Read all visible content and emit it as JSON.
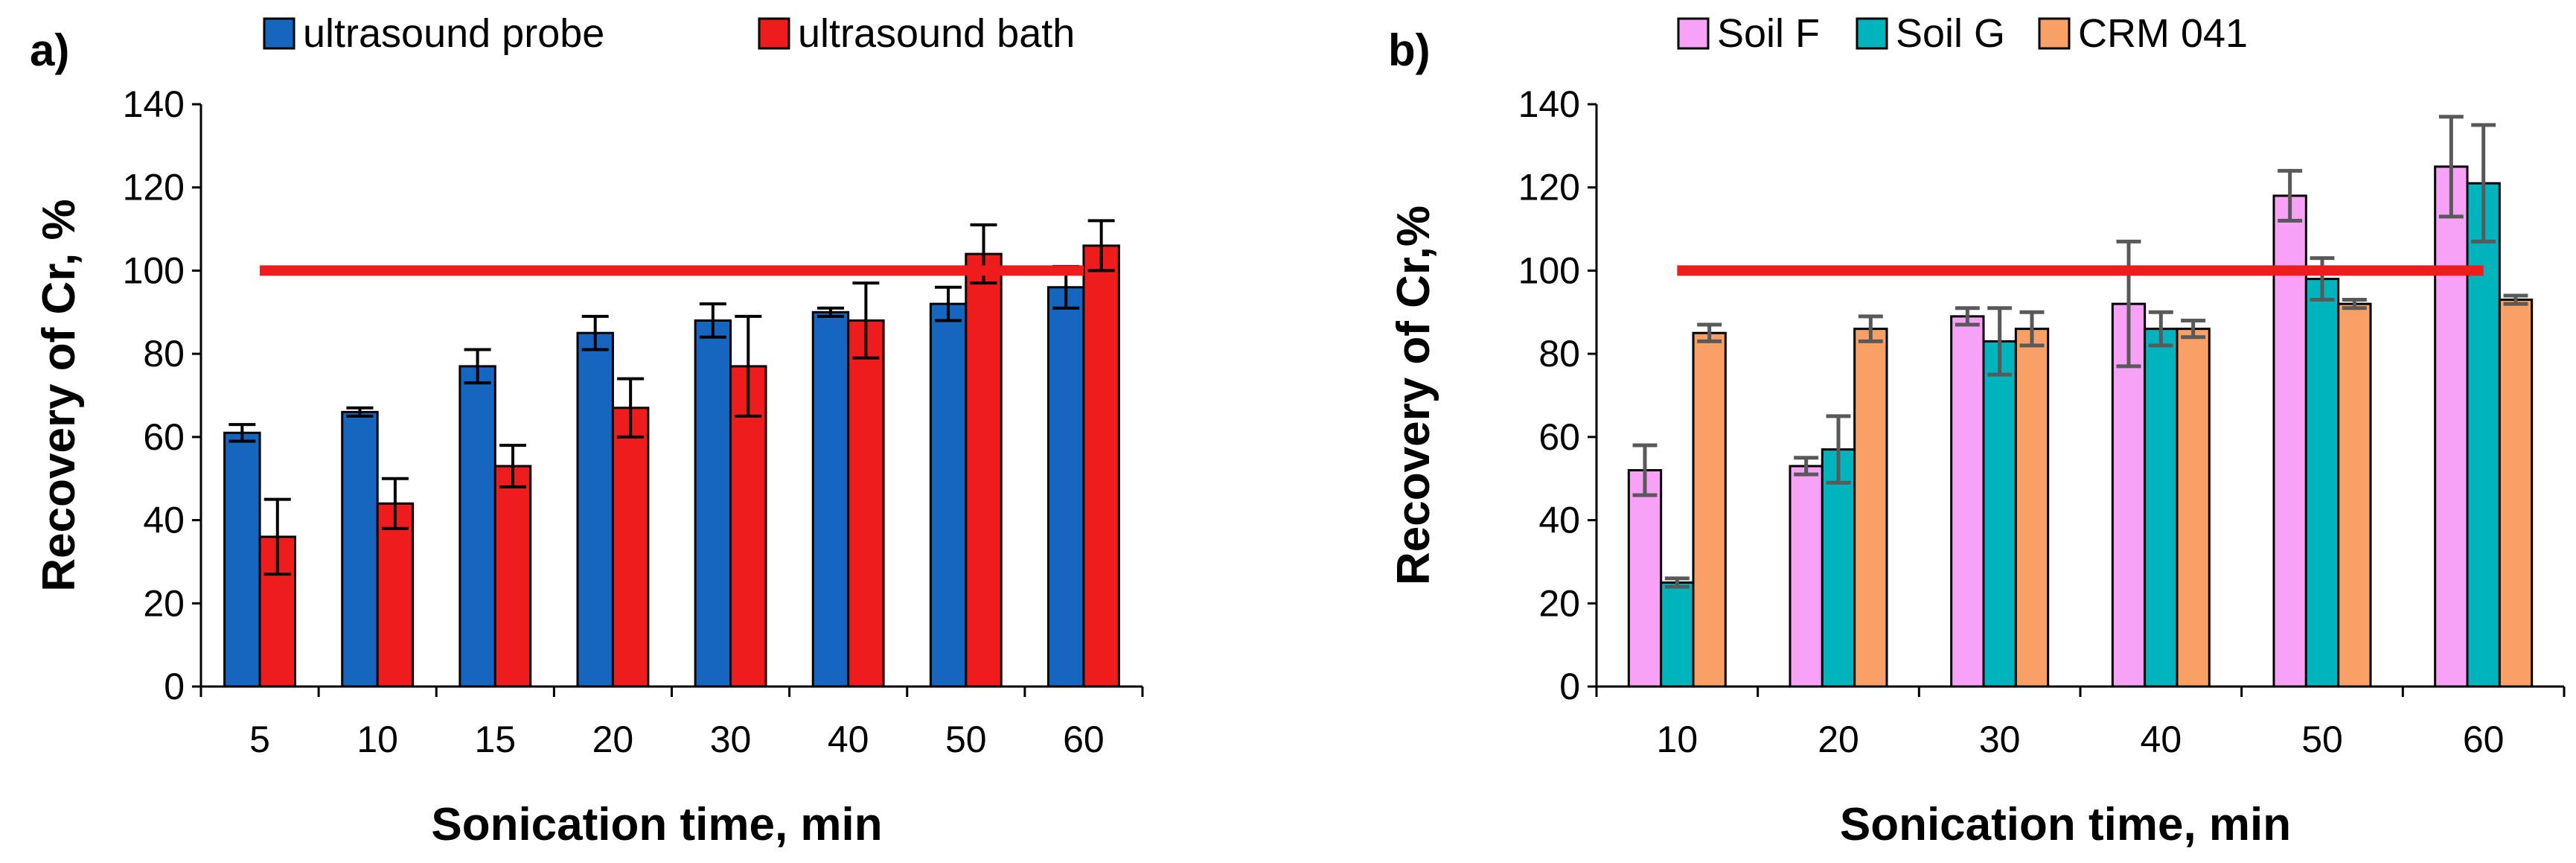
{
  "chart_data": [
    {
      "type": "bar",
      "panel_label": "a)",
      "categories": [
        "5",
        "10",
        "15",
        "20",
        "30",
        "40",
        "50",
        "60"
      ],
      "series": [
        {
          "name": "ultrasound probe",
          "color": "#1666C0",
          "values": [
            61,
            66,
            77,
            85,
            88,
            90,
            92,
            96
          ],
          "errors": [
            2,
            1,
            4,
            4,
            4,
            1,
            4,
            5
          ]
        },
        {
          "name": "ultrasound bath",
          "color": "#EE1C1C",
          "values": [
            36,
            44,
            53,
            67,
            77,
            88,
            104,
            106
          ],
          "errors": [
            9,
            6,
            5,
            7,
            12,
            9,
            7,
            6
          ]
        }
      ],
      "reference_line": {
        "value": 100,
        "color": "#EE1C1C"
      },
      "xlabel": "Sonication time, min",
      "ylabel": "Recovery of Cr, %",
      "ylim": [
        0,
        140
      ],
      "yticks": [
        "0",
        "20",
        "40",
        "60",
        "80",
        "100",
        "120",
        "140"
      ],
      "legend_position": "top"
    },
    {
      "type": "bar",
      "panel_label": "b)",
      "categories": [
        "10",
        "20",
        "30",
        "40",
        "50",
        "60"
      ],
      "series": [
        {
          "name": "Soil F",
          "color": "#F7A2F7",
          "values": [
            52,
            53,
            89,
            92,
            118,
            125
          ],
          "errors": [
            6,
            2,
            2,
            15,
            6,
            12
          ]
        },
        {
          "name": "Soil G",
          "color": "#00B4BE",
          "values": [
            25,
            57,
            83,
            86,
            98,
            121
          ],
          "errors": [
            1,
            8,
            8,
            4,
            5,
            14
          ]
        },
        {
          "name": "CRM 041",
          "color": "#F8A066",
          "values": [
            85,
            86,
            86,
            86,
            92,
            93
          ],
          "errors": [
            2,
            3,
            4,
            2,
            1,
            1
          ]
        }
      ],
      "reference_line": {
        "value": 100,
        "color": "#EE1C1C"
      },
      "xlabel": "Sonication time, min",
      "ylabel": "Recovery of Cr,%",
      "ylim": [
        0,
        140
      ],
      "yticks": [
        "0",
        "20",
        "40",
        "60",
        "80",
        "100",
        "120",
        "140"
      ],
      "legend_position": "top"
    }
  ]
}
